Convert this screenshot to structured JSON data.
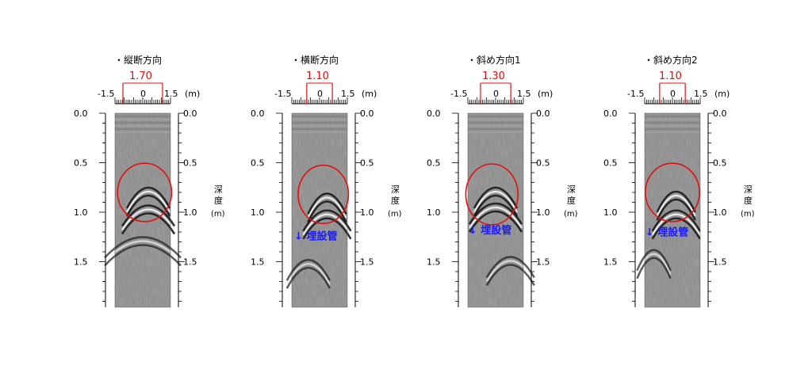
{
  "panels": [
    {
      "title": "・縦断方向",
      "width_label": "1.70",
      "annotation": ""
    },
    {
      "title": "・横断方向",
      "width_label": "1.10",
      "annotation": "↓ 埋設管"
    },
    {
      "title": "・斜め方向1",
      "width_label": "1.30",
      "annotation": "↓ 埋設管"
    },
    {
      "title": "・斜め方向2",
      "width_label": "1.10",
      "annotation": "↓ 埋設管"
    }
  ],
  "x_axis": {
    "ticks": [
      "-1.5",
      "0",
      "1.5"
    ],
    "unit": "(m)"
  },
  "y_axis": {
    "ticks": [
      "0.0",
      "0.5",
      "1.0",
      "1.5"
    ],
    "label_line1": "深",
    "label_line2": "度",
    "unit": "(m)"
  },
  "colors": {
    "highlight": "#e01010",
    "annotation": "#1a1aff",
    "radargram": "#8c8c8c"
  }
}
